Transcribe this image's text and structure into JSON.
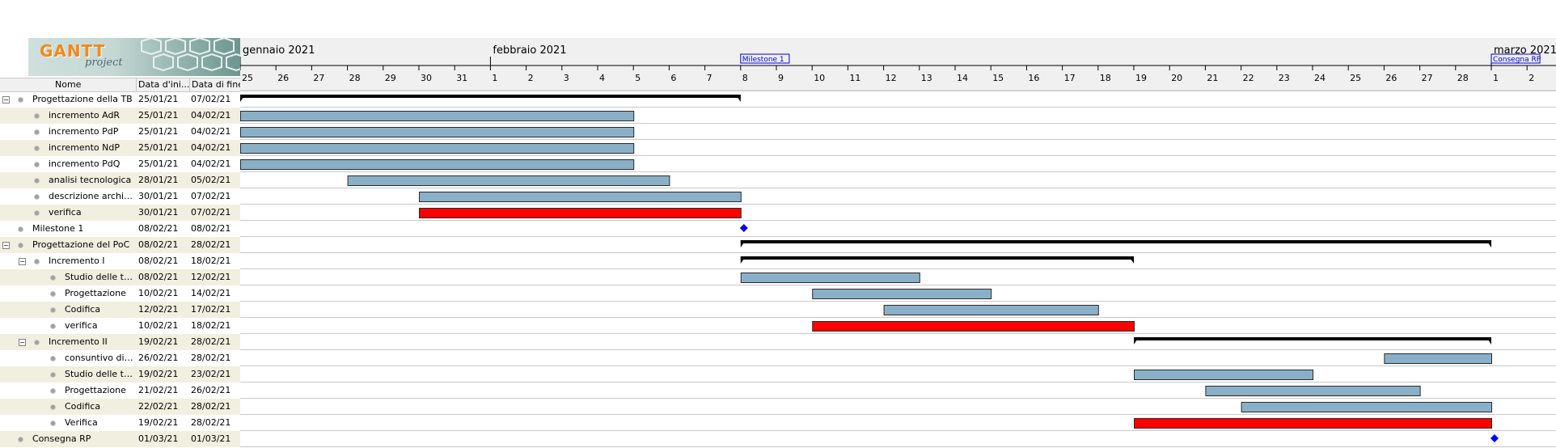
{
  "logo": {
    "word": "GANTT",
    "sub": "project"
  },
  "columns": {
    "name": "Nome",
    "start": "Data d'ini...",
    "end": "Data di fine"
  },
  "timeline": {
    "months": [
      {
        "label": "gennaio 2021",
        "day_index": 0
      },
      {
        "label": "febbraio 2021",
        "day_index": 7
      },
      {
        "label": "marzo 2021",
        "day_index": 35
      }
    ],
    "days": [
      "25",
      "26",
      "27",
      "28",
      "29",
      "30",
      "31",
      "1",
      "2",
      "3",
      "4",
      "5",
      "6",
      "7",
      "8",
      "9",
      "10",
      "11",
      "12",
      "13",
      "14",
      "15",
      "16",
      "17",
      "18",
      "19",
      "20",
      "21",
      "22",
      "23",
      "24",
      "25",
      "26",
      "27",
      "28",
      "1",
      "2"
    ],
    "start_date": "2021-01-25",
    "milestone_labels": [
      {
        "label": "Milestone 1",
        "date": "2021-02-08"
      },
      {
        "label": "Consegna RP",
        "date": "2021-03-01"
      }
    ]
  },
  "colors": {
    "task": "#8ab0c8",
    "highlight": "#ff0000",
    "summary": "#000000",
    "milestone": "#0000ff"
  },
  "tasks": [
    {
      "name": "Progettazione della TB",
      "start": "25/01/21",
      "end": "07/02/21",
      "level": 0,
      "toggle": "−",
      "kind": "summary",
      "s": "2021-01-25",
      "e": "2021-02-08"
    },
    {
      "name": "incremento AdR",
      "start": "25/01/21",
      "end": "04/02/21",
      "level": 1,
      "kind": "task",
      "s": "2021-01-25",
      "e": "2021-02-05"
    },
    {
      "name": "incremento PdP",
      "start": "25/01/21",
      "end": "04/02/21",
      "level": 1,
      "kind": "task",
      "s": "2021-01-25",
      "e": "2021-02-05"
    },
    {
      "name": "incremento NdP",
      "start": "25/01/21",
      "end": "04/02/21",
      "level": 1,
      "kind": "task",
      "s": "2021-01-25",
      "e": "2021-02-05"
    },
    {
      "name": "incremento PdQ",
      "start": "25/01/21",
      "end": "04/02/21",
      "level": 1,
      "kind": "task",
      "s": "2021-01-25",
      "e": "2021-02-05"
    },
    {
      "name": "analisi tecnologica",
      "start": "28/01/21",
      "end": "05/02/21",
      "level": 1,
      "kind": "task",
      "s": "2021-01-28",
      "e": "2021-02-06"
    },
    {
      "name": "descrizione architettura",
      "start": "30/01/21",
      "end": "07/02/21",
      "level": 1,
      "kind": "task",
      "s": "2021-01-30",
      "e": "2021-02-08"
    },
    {
      "name": "verifica",
      "start": "30/01/21",
      "end": "07/02/21",
      "level": 1,
      "kind": "highlight",
      "s": "2021-01-30",
      "e": "2021-02-08"
    },
    {
      "name": "Milestone 1",
      "start": "08/02/21",
      "end": "08/02/21",
      "level": 0,
      "kind": "milestone",
      "s": "2021-02-08",
      "e": "2021-02-08"
    },
    {
      "name": "Progettazione del PoC",
      "start": "08/02/21",
      "end": "28/02/21",
      "level": 0,
      "toggle": "−",
      "kind": "summary",
      "s": "2021-02-08",
      "e": "2021-03-01"
    },
    {
      "name": "Incremento I",
      "start": "08/02/21",
      "end": "18/02/21",
      "level": 1,
      "toggle": "−",
      "kind": "summary",
      "s": "2021-02-08",
      "e": "2021-02-19"
    },
    {
      "name": "Studio delle tecnologie",
      "start": "08/02/21",
      "end": "12/02/21",
      "level": 2,
      "kind": "task",
      "s": "2021-02-08",
      "e": "2021-02-13"
    },
    {
      "name": "Progettazione",
      "start": "10/02/21",
      "end": "14/02/21",
      "level": 2,
      "kind": "task",
      "s": "2021-02-10",
      "e": "2021-02-15"
    },
    {
      "name": "Codifica",
      "start": "12/02/21",
      "end": "17/02/21",
      "level": 2,
      "kind": "task",
      "s": "2021-02-12",
      "e": "2021-02-18"
    },
    {
      "name": "verifica",
      "start": "10/02/21",
      "end": "18/02/21",
      "level": 2,
      "kind": "highlight",
      "s": "2021-02-10",
      "e": "2021-02-19"
    },
    {
      "name": "Incremento II",
      "start": "19/02/21",
      "end": "28/02/21",
      "level": 1,
      "toggle": "−",
      "kind": "summary",
      "s": "2021-02-19",
      "e": "2021-03-01"
    },
    {
      "name": "consuntivo di periodo",
      "start": "26/02/21",
      "end": "28/02/21",
      "level": 2,
      "kind": "task",
      "s": "2021-02-26",
      "e": "2021-03-01"
    },
    {
      "name": "Studio delle tecnologie",
      "start": "19/02/21",
      "end": "23/02/21",
      "level": 2,
      "kind": "task",
      "s": "2021-02-19",
      "e": "2021-02-24"
    },
    {
      "name": "Progettazione",
      "start": "21/02/21",
      "end": "26/02/21",
      "level": 2,
      "kind": "task",
      "s": "2021-02-21",
      "e": "2021-02-27"
    },
    {
      "name": "Codifica",
      "start": "22/02/21",
      "end": "28/02/21",
      "level": 2,
      "kind": "task",
      "s": "2021-02-22",
      "e": "2021-03-01"
    },
    {
      "name": "Verifica",
      "start": "19/02/21",
      "end": "28/02/21",
      "level": 2,
      "kind": "highlight",
      "s": "2021-02-19",
      "e": "2021-03-01"
    },
    {
      "name": "Consegna RP",
      "start": "01/03/21",
      "end": "01/03/21",
      "level": 0,
      "kind": "milestone",
      "s": "2021-03-01",
      "e": "2021-03-01"
    }
  ]
}
